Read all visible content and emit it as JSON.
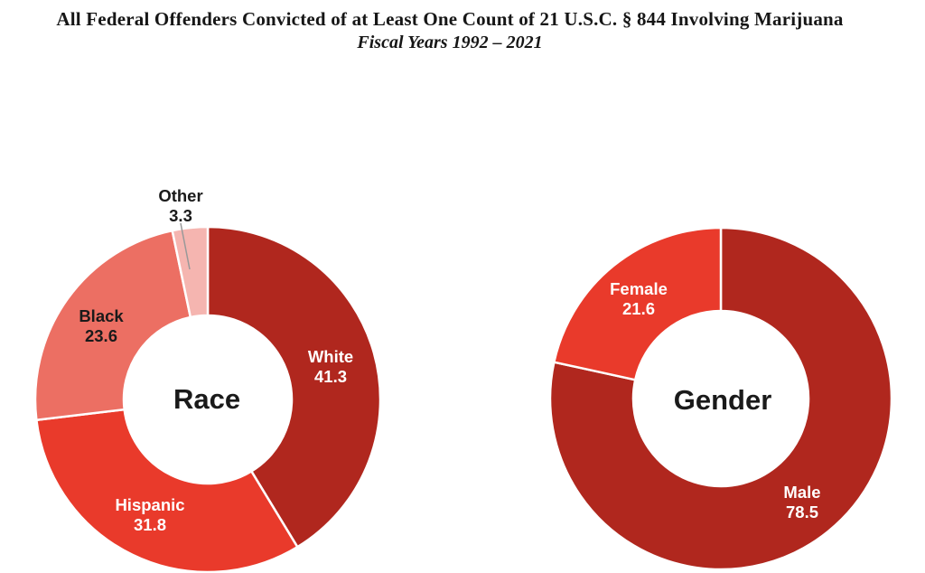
{
  "header": {
    "title": "All Federal Offenders Convicted of at Least One Count of 21 U.S.C. § 844 Involving Marijuana",
    "subtitle": "Fiscal Years 1992 – 2021"
  },
  "palette": {
    "dark_red": "#b0271e",
    "bright_red": "#e93a2b",
    "salmon": "#ec6f63",
    "pale_pink": "#f5b5b0",
    "callout_line_gray": "#999999",
    "text_black": "#1a1a1a",
    "text_white": "#ffffff"
  },
  "chart_data": [
    {
      "type": "pie",
      "subtype": "donut",
      "title": "Race",
      "center_label": "Race",
      "start_angle_deg": 0,
      "direction": "clockwise",
      "legend": "none",
      "slices": [
        {
          "label": "White",
          "value": 41.3,
          "color": "#b0271e",
          "label_color": "white",
          "label_placement": "inside"
        },
        {
          "label": "Hispanic",
          "value": 31.8,
          "color": "#e93a2b",
          "label_color": "white",
          "label_placement": "inside"
        },
        {
          "label": "Black",
          "value": 23.6,
          "color": "#ec6f63",
          "label_color": "black",
          "label_placement": "inside"
        },
        {
          "label": "Other",
          "value": 3.3,
          "color": "#f5b5b0",
          "label_color": "black",
          "label_placement": "outside-callout"
        }
      ]
    },
    {
      "type": "pie",
      "subtype": "donut",
      "title": "Gender",
      "center_label": "Gender",
      "start_angle_deg": 0,
      "direction": "clockwise",
      "legend": "none",
      "slices": [
        {
          "label": "Male",
          "value": 78.5,
          "color": "#b0271e",
          "label_color": "white",
          "label_placement": "inside"
        },
        {
          "label": "Female",
          "value": 21.6,
          "color": "#e93a2b",
          "label_color": "white",
          "label_placement": "inside"
        }
      ]
    }
  ]
}
